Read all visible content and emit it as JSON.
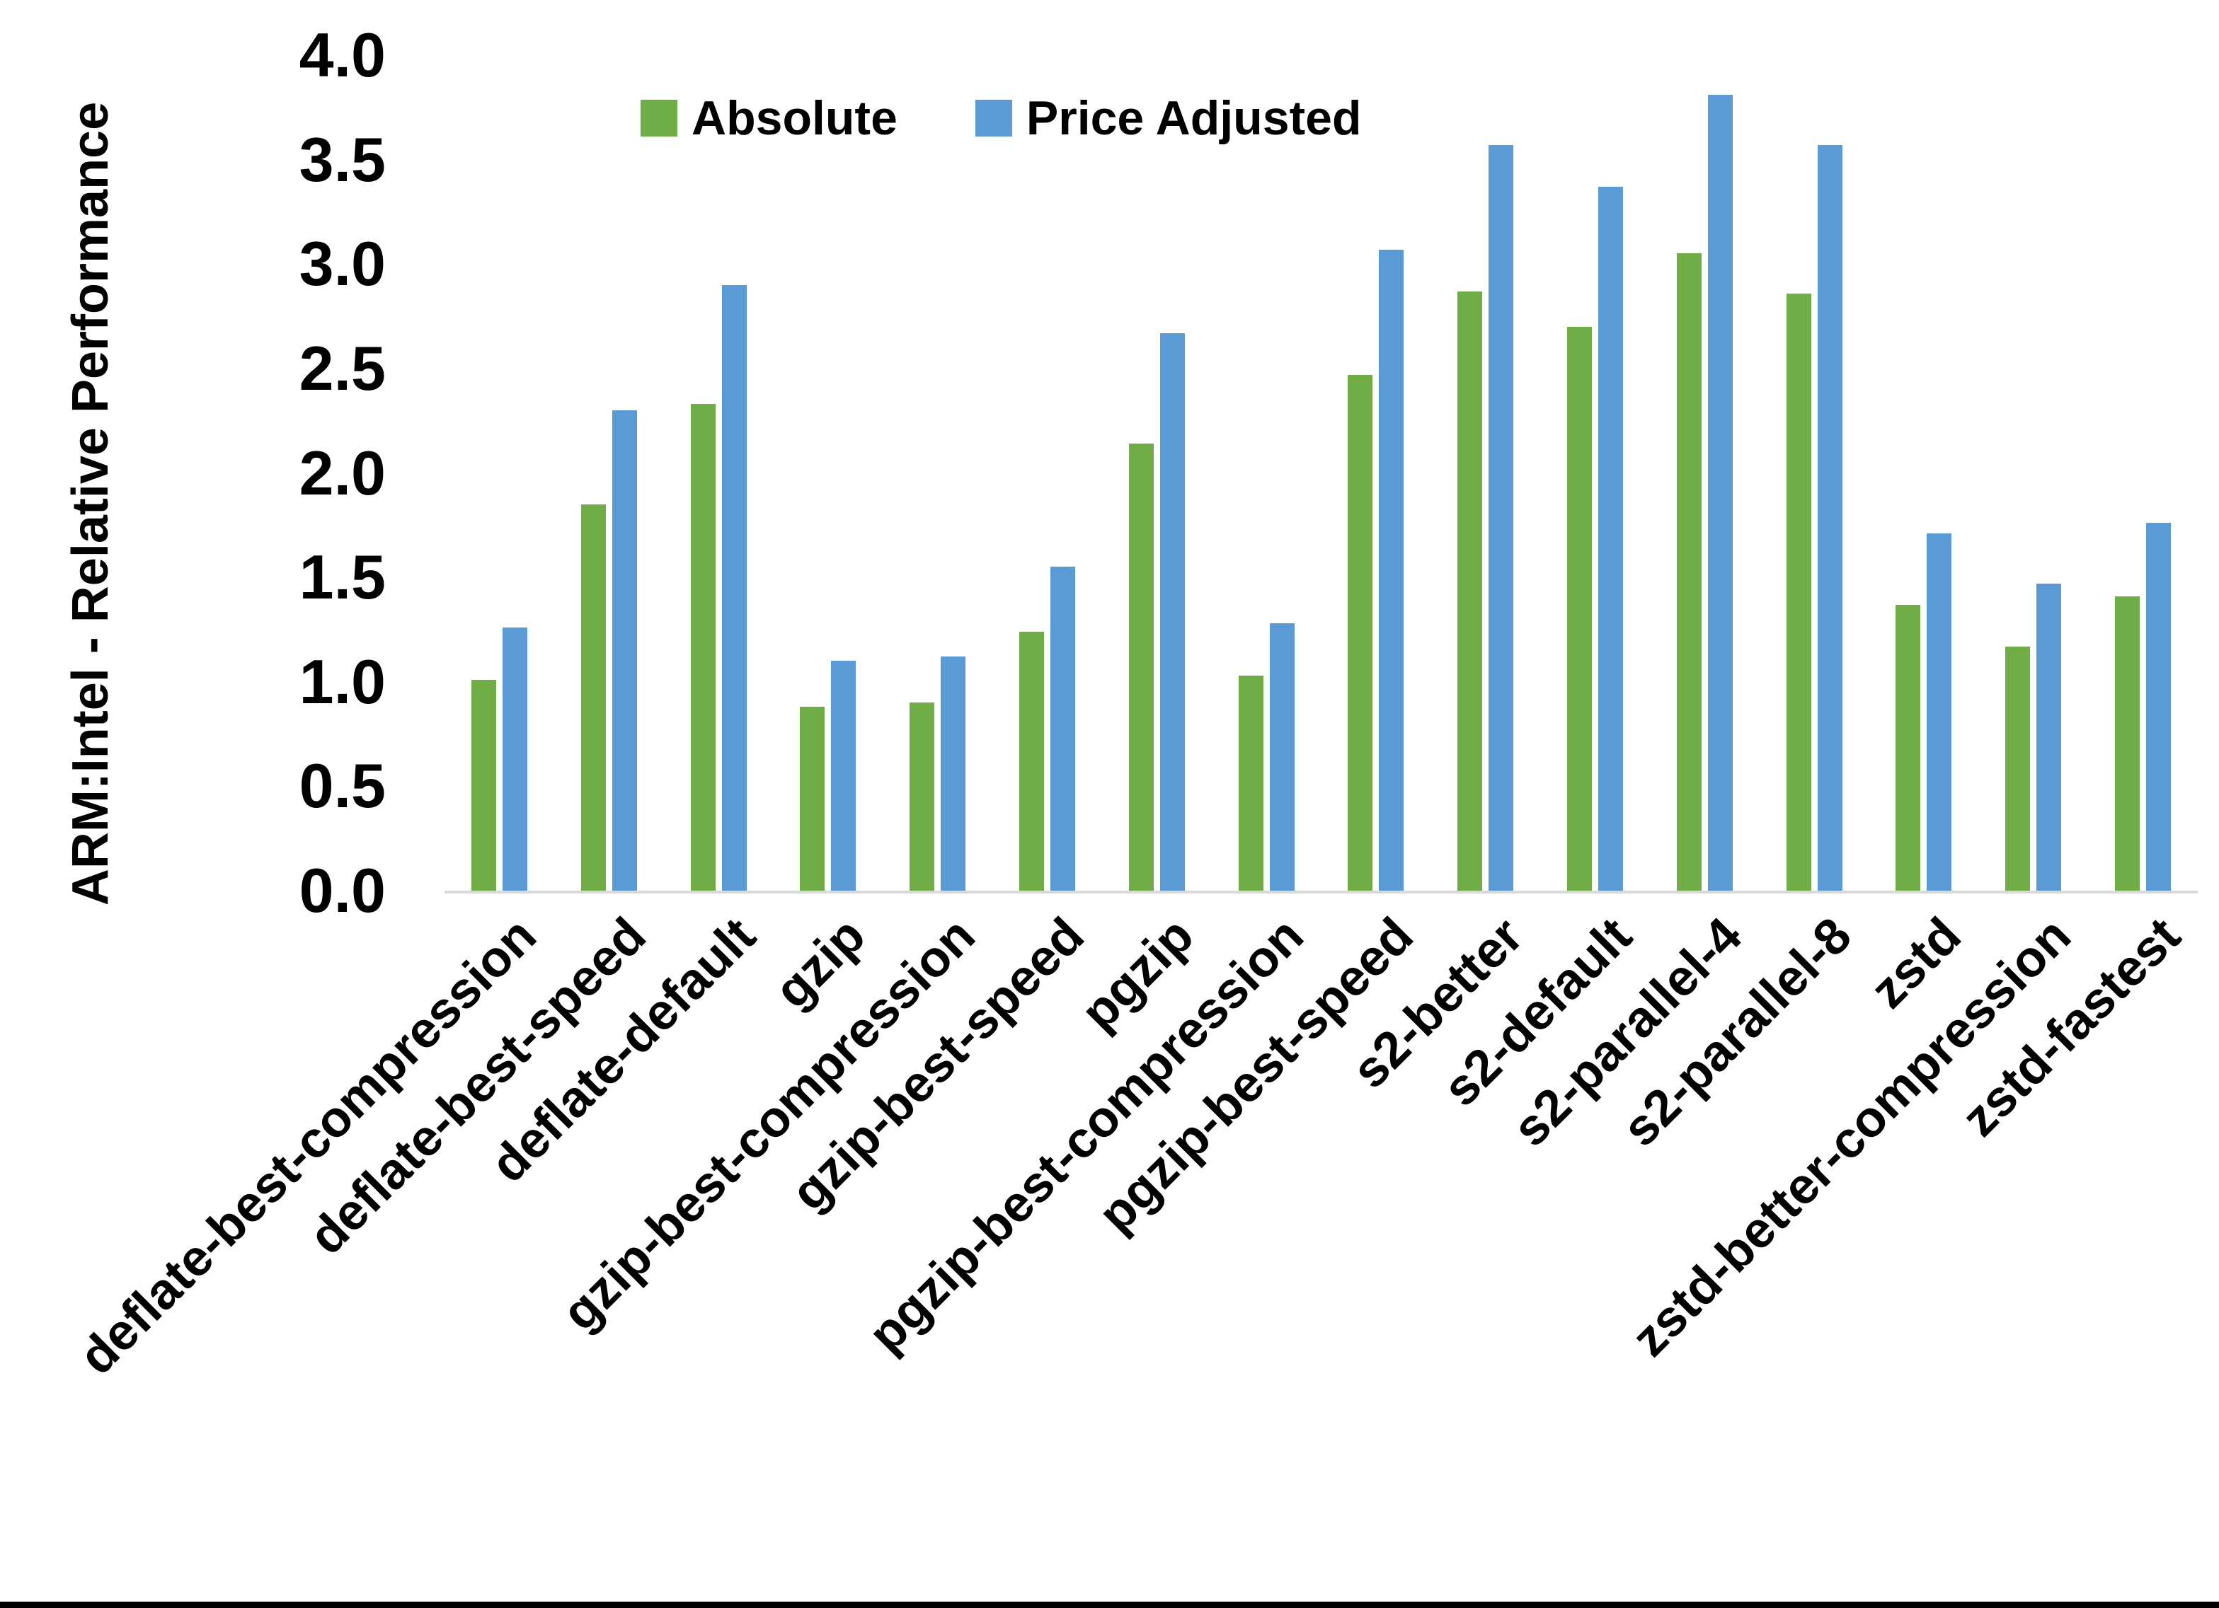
{
  "chart_data": {
    "type": "bar",
    "title": "",
    "xlabel": "",
    "ylabel": "ARM:Intel - Relative Performance",
    "ylim": [
      0.0,
      4.0
    ],
    "ytick_step": 0.5,
    "ytick_labels": [
      "0.0",
      "0.5",
      "1.0",
      "1.5",
      "2.0",
      "2.5",
      "3.0",
      "3.5",
      "4.0"
    ],
    "grid": false,
    "legend_position": "top-center",
    "categories": [
      "deflate-best-compression",
      "deflate-best-speed",
      "deflate-default",
      "gzip",
      "gzip-best-compression",
      "gzip-best-speed",
      "pgzip",
      "pgzip-best-compression",
      "pgzip-best-speed",
      "s2-better",
      "s2-default",
      "s2-parallel-4",
      "s2-parallel-8",
      "zstd",
      "zstd-better-compression",
      "zstd-fastest"
    ],
    "series": [
      {
        "name": "Absolute",
        "color": "#70AD47",
        "values": [
          1.01,
          1.85,
          2.33,
          0.88,
          0.9,
          1.24,
          2.14,
          1.03,
          2.47,
          2.87,
          2.7,
          3.05,
          2.86,
          1.37,
          1.17,
          1.41
        ]
      },
      {
        "name": "Price Adjusted",
        "color": "#5B9BD5",
        "values": [
          1.26,
          2.3,
          2.9,
          1.1,
          1.12,
          1.55,
          2.67,
          1.28,
          3.07,
          3.57,
          3.37,
          3.81,
          3.57,
          1.71,
          1.47,
          1.76
        ]
      }
    ],
    "axis_line_color": "#D9D9D9",
    "background_color": "#FFFFFF",
    "bottom_strip_color": "#000000"
  }
}
